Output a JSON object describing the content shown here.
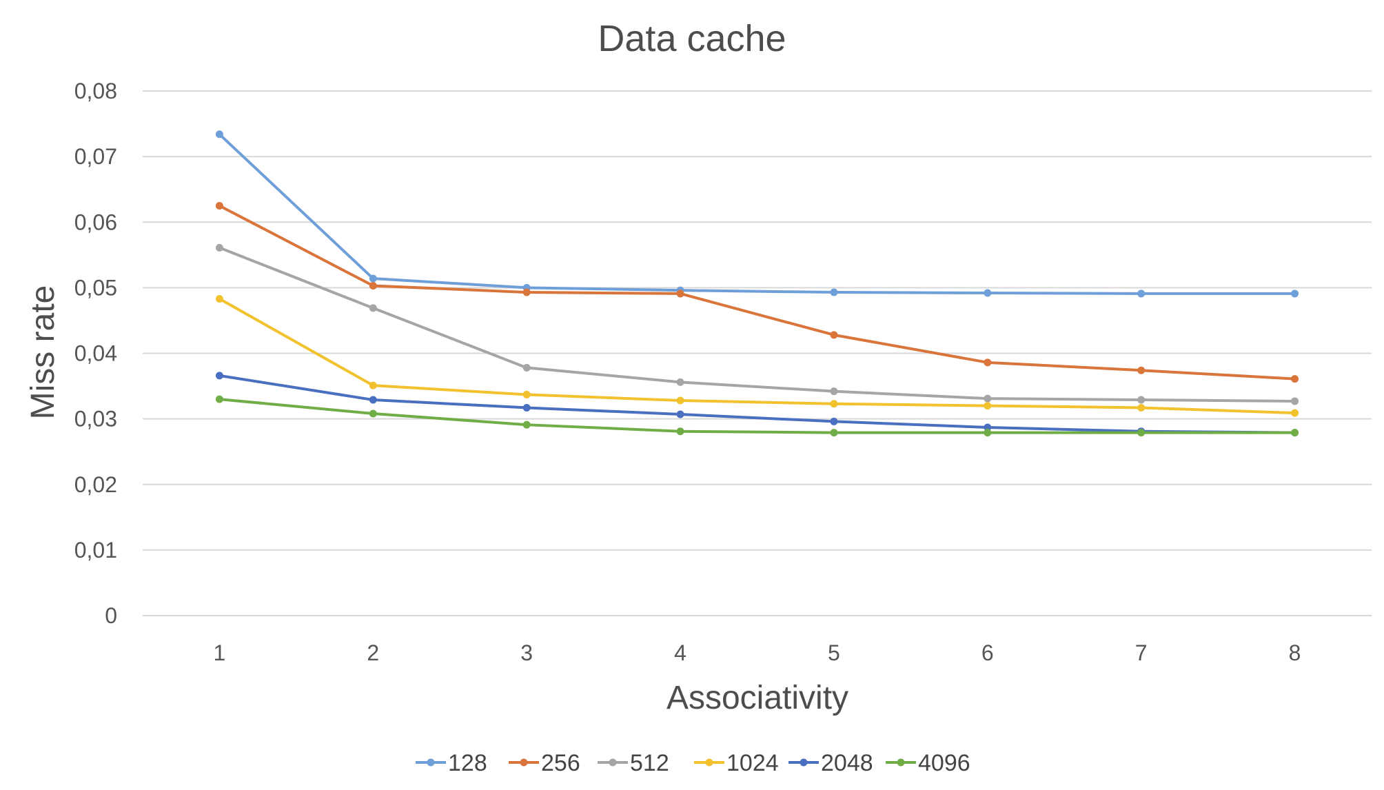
{
  "chart_data": {
    "type": "line",
    "title": "Data cache",
    "xlabel": "Associativity",
    "ylabel": "Miss rate",
    "x": [
      1,
      2,
      3,
      4,
      5,
      6,
      7,
      8
    ],
    "x_tick_labels": [
      "1",
      "2",
      "3",
      "4",
      "5",
      "6",
      "7",
      "8"
    ],
    "ylim": [
      0,
      0.08
    ],
    "y_tick_labels": [
      "0",
      "0,01",
      "0,02",
      "0,03",
      "0,04",
      "0,05",
      "0,06",
      "0,07",
      "0,08"
    ],
    "grid": true,
    "legend_position": "bottom",
    "series": [
      {
        "name": "128",
        "color": "#6f9fd8",
        "values": [
          0.0734,
          0.0514,
          0.05,
          0.0496,
          0.0493,
          0.0492,
          0.0491,
          0.0491
        ]
      },
      {
        "name": "256",
        "color": "#d9743a",
        "values": [
          0.0625,
          0.0503,
          0.0493,
          0.0491,
          0.0428,
          0.0386,
          0.0374,
          0.0361
        ]
      },
      {
        "name": "512",
        "color": "#a5a5a5",
        "values": [
          0.0561,
          0.0469,
          0.0378,
          0.0356,
          0.0342,
          0.0331,
          0.0329,
          0.0327
        ]
      },
      {
        "name": "1024",
        "color": "#f2c12e",
        "values": [
          0.0483,
          0.0351,
          0.0337,
          0.0328,
          0.0323,
          0.032,
          0.0317,
          0.0309
        ]
      },
      {
        "name": "2048",
        "color": "#4a6fc0",
        "values": [
          0.0366,
          0.0329,
          0.0317,
          0.0307,
          0.0296,
          0.0287,
          0.0281,
          0.0279
        ]
      },
      {
        "name": "4096",
        "color": "#70ad47",
        "values": [
          0.033,
          0.0308,
          0.0291,
          0.0281,
          0.0279,
          0.0279,
          0.0279,
          0.0279
        ]
      }
    ]
  }
}
